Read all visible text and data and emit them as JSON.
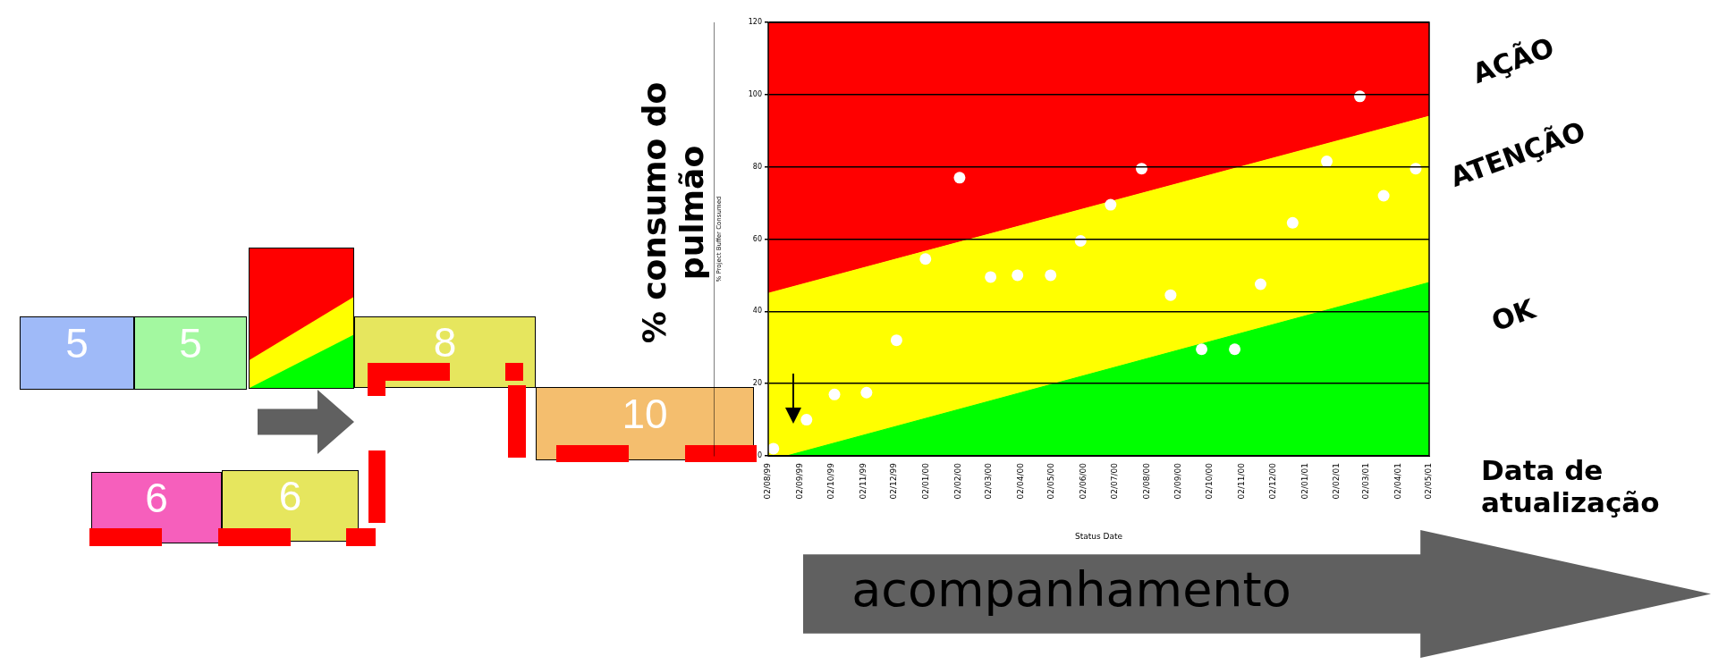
{
  "chart_data": {
    "type": "scatter",
    "xlabel": "Status Date",
    "ylabel": "% Project Buffer Consumed",
    "xlim": [
      "1999-08-02",
      "2001-05-02"
    ],
    "xticks": [
      {
        "value": "1999-08-02",
        "label": "02/08/99"
      },
      {
        "value": "1999-09-02",
        "label": "02/09/99"
      },
      {
        "value": "1999-10-02",
        "label": "02/10/99"
      },
      {
        "value": "1999-11-02",
        "label": "02/11/99"
      },
      {
        "value": "1999-12-02",
        "label": "02/12/99"
      },
      {
        "value": "2000-01-02",
        "label": "02/01/00"
      },
      {
        "value": "2000-02-02",
        "label": "02/02/00"
      },
      {
        "value": "2000-03-02",
        "label": "02/03/00"
      },
      {
        "value": "2000-04-02",
        "label": "02/04/00"
      },
      {
        "value": "2000-05-02",
        "label": "02/05/00"
      },
      {
        "value": "2000-06-02",
        "label": "02/06/00"
      },
      {
        "value": "2000-07-02",
        "label": "02/07/00"
      },
      {
        "value": "2000-08-02",
        "label": "02/08/00"
      },
      {
        "value": "2000-09-02",
        "label": "02/09/00"
      },
      {
        "value": "2000-10-02",
        "label": "02/10/00"
      },
      {
        "value": "2000-11-02",
        "label": "02/11/00"
      },
      {
        "value": "2000-12-02",
        "label": "02/12/00"
      },
      {
        "value": "2001-01-02",
        "label": "02/01/01"
      },
      {
        "value": "2001-02-02",
        "label": "02/02/01"
      },
      {
        "value": "2001-03-02",
        "label": "02/03/01"
      },
      {
        "value": "2001-04-02",
        "label": "02/04/01"
      },
      {
        "value": "2001-05-02",
        "label": "02/05/01"
      }
    ],
    "ylim": [
      0,
      120
    ],
    "yticks": [
      0,
      20,
      40,
      60,
      80,
      100,
      120
    ],
    "grid": "y",
    "legend": false,
    "series": [
      {
        "name": "AÇÃO",
        "type": "area",
        "color": "#ff0000",
        "x": [
          "1999-08-02",
          "2001-05-02"
        ],
        "values": [
          120,
          120
        ]
      },
      {
        "name": "ATENÇÃO",
        "type": "area",
        "color": "#ffff00",
        "x": [
          "1999-08-02",
          "2001-05-02"
        ],
        "values": [
          45,
          94
        ]
      },
      {
        "name": "OK",
        "type": "area",
        "color": "#00ff00",
        "x": [
          "1999-08-20",
          "2001-05-02"
        ],
        "values": [
          0,
          48
        ]
      },
      {
        "marker": "circle",
        "color": "#ffffff",
        "x": [
          "1999-08-07",
          "1999-09-08",
          "1999-10-05",
          "1999-11-05",
          "1999-12-04",
          "2000-01-01",
          "2000-02-03",
          "2000-03-04",
          "2000-03-30",
          "2000-05-01",
          "2000-05-30",
          "2000-06-28",
          "2000-07-28",
          "2000-08-25",
          "2000-09-24",
          "2000-10-26",
          "2000-11-20",
          "2000-12-21",
          "2001-01-23",
          "2001-02-24",
          "2001-03-19",
          "2001-04-19"
        ],
        "values": [
          2,
          10,
          17,
          17.5,
          32,
          54.5,
          77,
          49.5,
          50,
          50,
          59.5,
          69.5,
          79.5,
          44.5,
          29.5,
          29.5,
          47.5,
          64.5,
          81.5,
          99.5,
          72,
          79.5
        ]
      }
    ],
    "annotations": [
      "% consumo do pulmão",
      "Data de atualização",
      "acompanhamento",
      "5",
      "5",
      "8",
      "10",
      "6",
      "6"
    ]
  }
}
